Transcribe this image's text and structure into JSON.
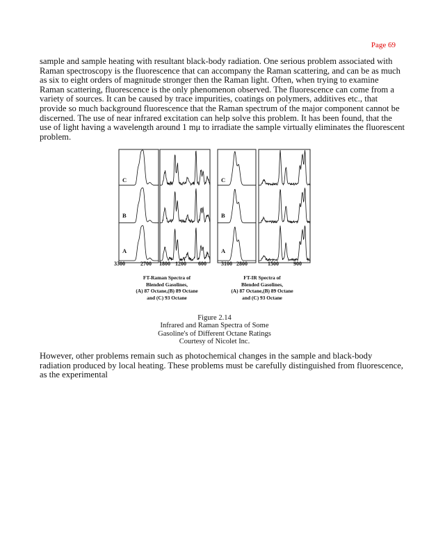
{
  "page_number": "Page 69",
  "paragraph1": [
    "sample and sample heating with resultant black-body radiation. One serious problem associated with",
    "Raman spectroscopy is the fluorescence that can accompany the Raman scattering, and can be as much",
    "as six to eight orders of magnitude stronger then the Raman light. Often, when trying to examine",
    "Raman scattering, fluorescence is the only phenomenon observed. The fluorescence can come from a",
    "variety of sources. It can be caused by trace impurities, coatings on polymers, additives etc., that",
    "provide so much background fluorescence that the Raman spectrum of the major component cannot be",
    "discerned. The use of near infrared excitation can help solve this problem. It has been found, that the",
    "use of light having a wavelength around 1 mμ to irradiate the sample virtually eliminates the fluorescent",
    "problem."
  ],
  "figure": {
    "trace_labels": [
      "C",
      "B",
      "A"
    ],
    "raman_ticks_left": [
      "3300",
      "2700"
    ],
    "raman_ticks_right": [
      "1800",
      "1200",
      "600"
    ],
    "ir_ticks_left": [
      "3100",
      "2800"
    ],
    "ir_ticks_right": [
      "1500",
      "900"
    ],
    "raman_caption": [
      "FT-Raman Spectra of",
      "Blended Gasolines,",
      "(A) 87 Octane,(B)   89 Octane",
      "and (C) 93 Octane"
    ],
    "ir_caption": [
      "FT-IR Spectra of",
      "Blended Gasolines,",
      "(A) 87 Octane,(B)   89 Octane",
      "and (C) 93 Octane"
    ]
  },
  "figure_caption": [
    "Figure 2.14",
    "Infrared and Raman Spectra of Some",
    "Gasoline's of Different Octane Ratings",
    "Courtesy of Nicolet Inc."
  ],
  "paragraph2": [
    "However, other problems remain such as photochemical changes in the sample and black-body",
    "radiation produced by local heating. These problems must be carefully distinguished from fluorescence,",
    "as the experimental"
  ]
}
